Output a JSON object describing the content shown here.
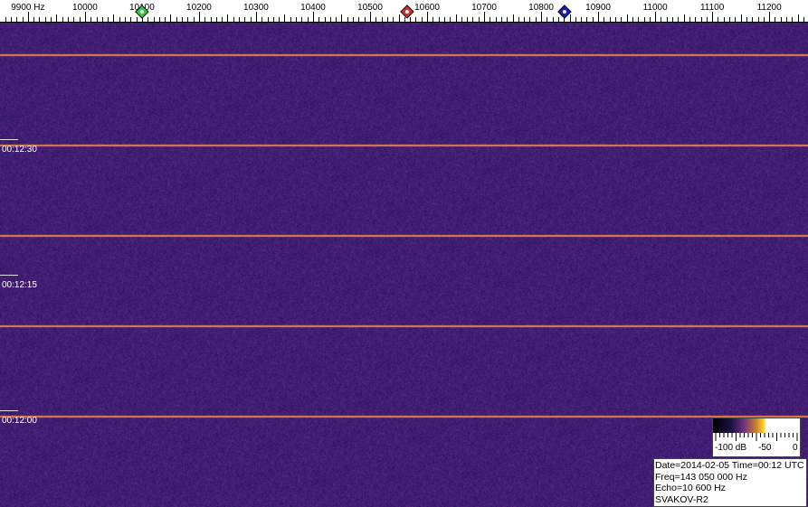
{
  "chart_data": {
    "type": "heatmap",
    "title": "",
    "x_unit": "Hz",
    "x_ticks": [
      9900,
      10000,
      10100,
      10200,
      10300,
      10400,
      10500,
      10600,
      10700,
      10800,
      10900,
      11000,
      11100,
      11200
    ],
    "x_tick_labels": [
      "9900 Hz",
      "10000",
      "10100",
      "10200",
      "10300",
      "10400",
      "10500",
      "10600",
      "10700",
      "10800",
      "10900",
      "11000",
      "11100",
      "11200"
    ],
    "x_range": [
      9851,
      11268
    ],
    "time_labels": [
      "00:12:30",
      "00:12:15",
      "00:12:00"
    ],
    "markers": [
      {
        "freq": 10100,
        "color": "#2ecc40"
      },
      {
        "freq": 10565,
        "color": "#d0302a"
      },
      {
        "freq": 10841,
        "color": "#1020c0"
      }
    ],
    "colorbar": {
      "labels": [
        "-100 dB",
        "-50",
        "0"
      ],
      "range_db": [
        -100,
        0
      ]
    },
    "colors": {
      "background": "#3a2080",
      "grid_line": "#e8804a"
    }
  },
  "info": {
    "line1": "Date=2014-02-05 Time=00:12 UTC",
    "line2": "Freq=143 050 000 Hz",
    "line3": "Echo=10 600 Hz",
    "line4": "SVAKOV-R2"
  }
}
